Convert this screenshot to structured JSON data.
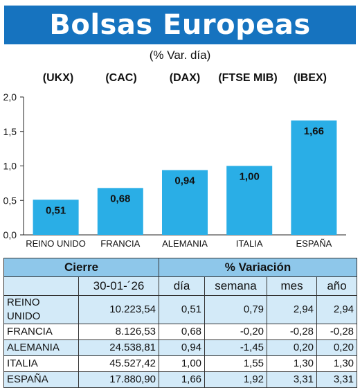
{
  "header": {
    "title": "Bolsas Europeas",
    "subtitle": "(% Var. día)"
  },
  "chart_data": {
    "type": "bar",
    "title": "Bolsas Europeas",
    "subtitle": "(% Var. día)",
    "indices": [
      "(UKX)",
      "(CAC)",
      "(DAX)",
      "(FTSE MIB)",
      "(IBEX)"
    ],
    "categories": [
      "REINO UNIDO",
      "FRANCIA",
      "ALEMANIA",
      "ITALIA",
      "ESPAÑA"
    ],
    "values": [
      0.51,
      0.68,
      0.94,
      1.0,
      1.66
    ],
    "value_labels": [
      "0,51",
      "0,68",
      "0,94",
      "1,00",
      "1,66"
    ],
    "yticks": [
      "0,0",
      "0,5",
      "1,0",
      "1,5",
      "2,0"
    ],
    "ylim": [
      0,
      2.0
    ],
    "grid": false,
    "xlabel": "",
    "ylabel": "",
    "bar_color": "#2aaee6"
  },
  "table": {
    "group_headers": {
      "cierre": "Cierre",
      "variacion": "% Variación"
    },
    "col_headers": {
      "date": "30-01-´26",
      "dia": "día",
      "semana": "semana",
      "mes": "mes",
      "ano": "año"
    },
    "rows": [
      {
        "country": "REINO UNIDO",
        "cierre": "10.223,54",
        "dia": "0,51",
        "semana": "0,79",
        "mes": "2,94",
        "ano": "2,94"
      },
      {
        "country": "FRANCIA",
        "cierre": "8.126,53",
        "dia": "0,68",
        "semana": "-0,20",
        "mes": "-0,28",
        "ano": "-0,28"
      },
      {
        "country": "ALEMANIA",
        "cierre": "24.538,81",
        "dia": "0,94",
        "semana": "-1,45",
        "mes": "0,20",
        "ano": "0,20"
      },
      {
        "country": "ITALIA",
        "cierre": "45.527,42",
        "dia": "1,00",
        "semana": "1,55",
        "mes": "1,30",
        "ano": "1,30"
      },
      {
        "country": "ESPAÑA",
        "cierre": "17.880,90",
        "dia": "1,66",
        "semana": "1,92",
        "mes": "3,31",
        "ano": "3,31"
      }
    ]
  },
  "colors": {
    "banner": "#1673bf",
    "bar": "#2aaee6",
    "table_header": "#8ec7ea",
    "table_row": "#d3eaf8"
  }
}
